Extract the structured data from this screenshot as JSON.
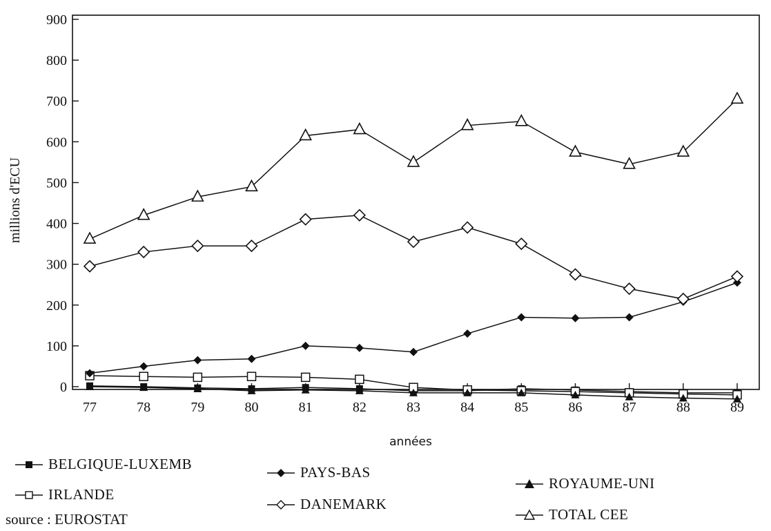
{
  "chart_data": {
    "type": "line",
    "xlabel": "années",
    "ylabel": "millions d'ECU",
    "categories": [
      "77",
      "78",
      "79",
      "80",
      "81",
      "82",
      "83",
      "84",
      "85",
      "86",
      "87",
      "88",
      "89"
    ],
    "ylim": [
      0,
      900
    ],
    "yticks": [
      0,
      100,
      200,
      300,
      400,
      500,
      600,
      700,
      800,
      900
    ],
    "grid": false,
    "legend_position": "bottom",
    "series": [
      {
        "name": "BELGIQUE-LUXEMB",
        "marker": "filled-square",
        "values": [
          2,
          0,
          -3,
          -5,
          -2,
          -5,
          -10,
          -10,
          -5,
          -8,
          -12,
          -15,
          -15
        ]
      },
      {
        "name": "IRLANDE",
        "marker": "open-square",
        "values": [
          27,
          25,
          23,
          25,
          23,
          18,
          -2,
          -8,
          -10,
          -12,
          -15,
          -18,
          -20
        ]
      },
      {
        "name": "PAYS-BAS",
        "marker": "filled-diamond",
        "values": [
          33,
          50,
          65,
          68,
          100,
          95,
          85,
          130,
          170,
          168,
          170,
          208,
          255
        ]
      },
      {
        "name": "DANEMARK",
        "marker": "open-diamond",
        "values": [
          295,
          330,
          345,
          345,
          410,
          420,
          355,
          390,
          350,
          275,
          240,
          215,
          270
        ]
      },
      {
        "name": "ROYAUME-UNI",
        "marker": "filled-triangle",
        "values": [
          0,
          -2,
          -5,
          -10,
          -8,
          -10,
          -15,
          -15,
          -15,
          -20,
          -25,
          -28,
          -30
        ]
      },
      {
        "name": "TOTAL CEE",
        "marker": "open-triangle",
        "values": [
          362,
          420,
          465,
          490,
          615,
          630,
          550,
          640,
          650,
          575,
          545,
          575,
          705
        ]
      }
    ]
  },
  "source_text": "source : EUROSTAT"
}
